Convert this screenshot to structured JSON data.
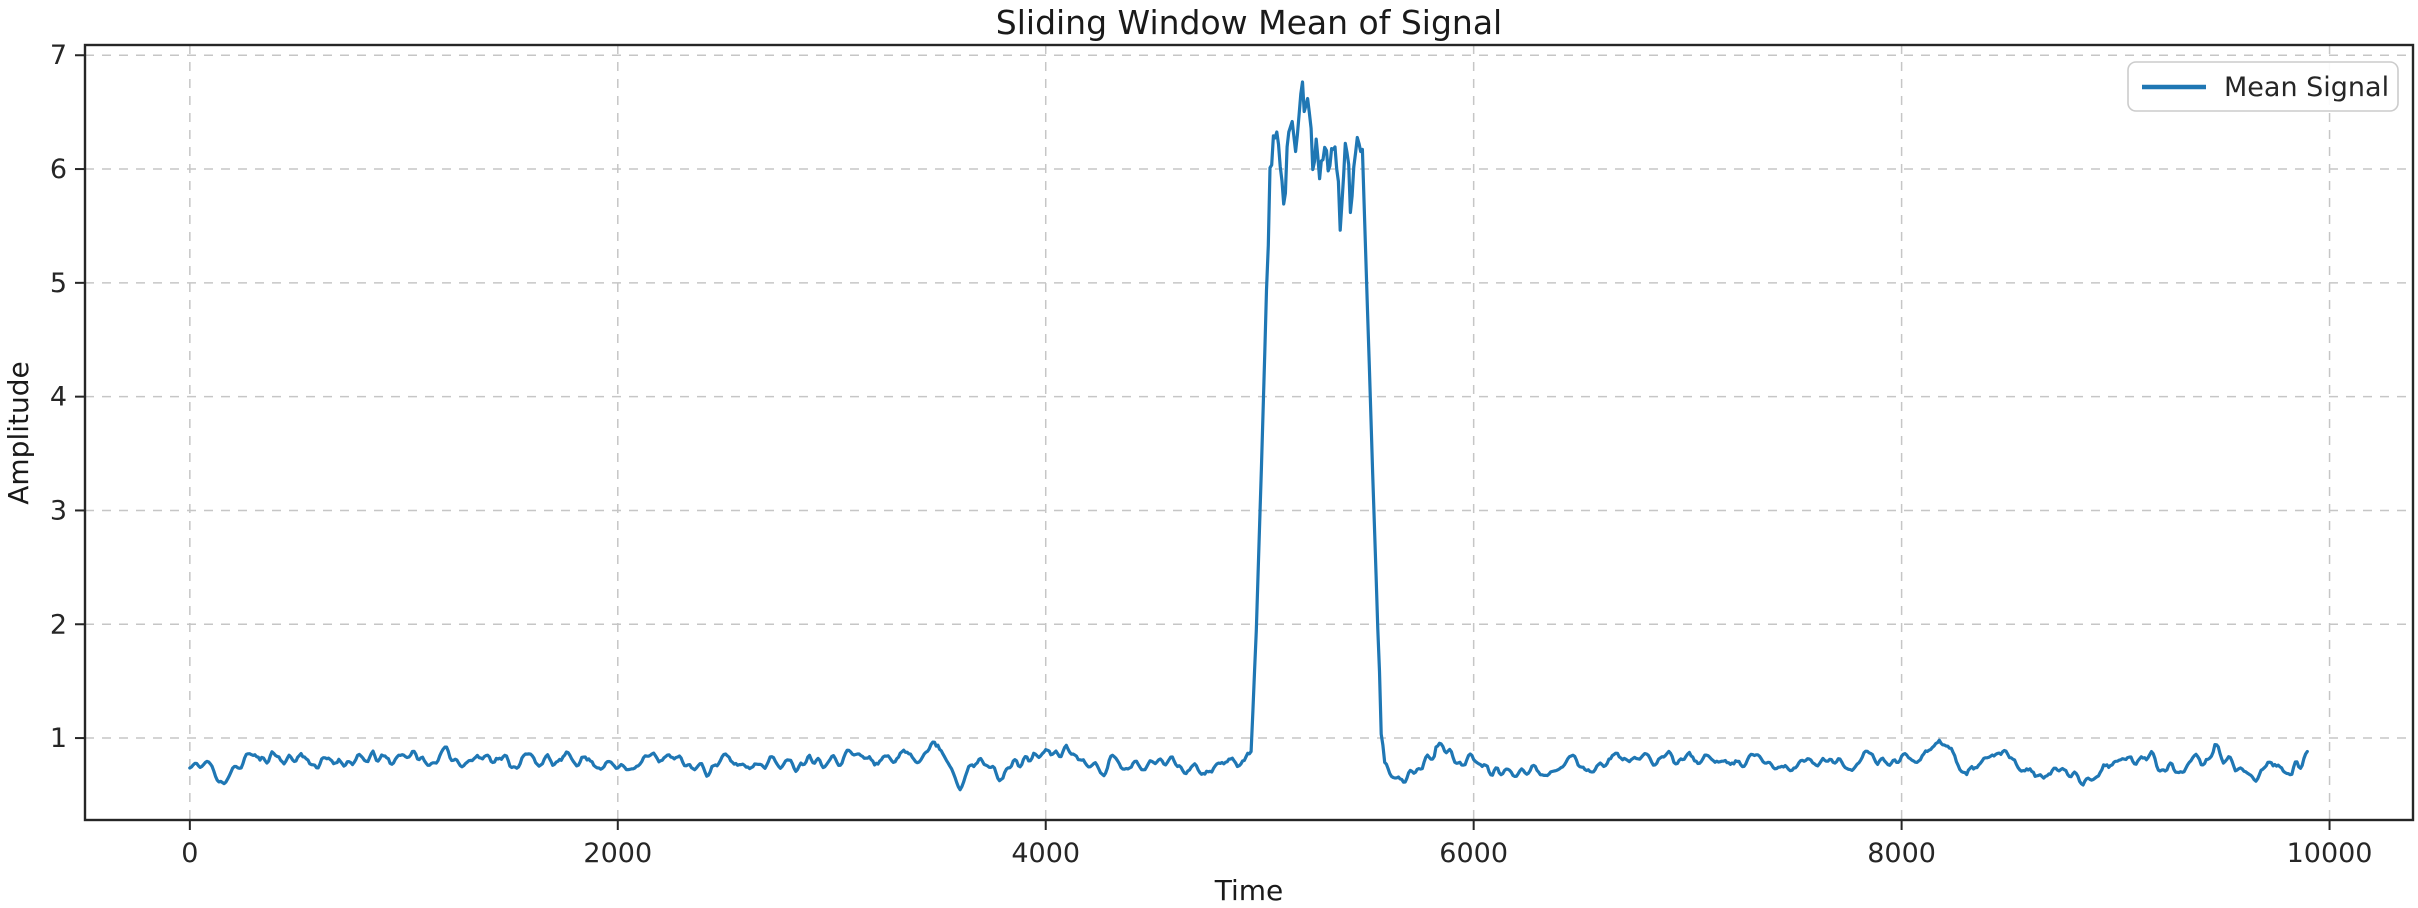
{
  "figure": {
    "title": "Sliding Window Mean of Signal",
    "x_axis_label": "Time",
    "y_axis_label": "Amplitude",
    "legend": {
      "position": "upper right",
      "entries": [
        {
          "label": "Mean Signal",
          "color": "#1f77b4"
        }
      ]
    }
  },
  "colors": {
    "line": "#1f77b4",
    "grid": "#c6c6c6",
    "spine": "#262626",
    "tick": "#262626",
    "text": "#1a1a1a",
    "legend_border": "#cccccc",
    "background": "#ffffff"
  },
  "chart_data": {
    "type": "line",
    "title": "Sliding Window Mean of Signal",
    "xlabel": "Time",
    "ylabel": "Amplitude",
    "legend": [
      "Mean Signal"
    ],
    "legend_position": "upper right",
    "grid": true,
    "grid_style": "dashed",
    "xlim": [
      -490,
      10390
    ],
    "ylim": [
      0.28,
      7.09
    ],
    "xticks": [
      0,
      2000,
      4000,
      6000,
      8000,
      10000
    ],
    "yticks": [
      1,
      2,
      3,
      4,
      5,
      6,
      7
    ],
    "description": "Sliding-window mean of a noisy signal: baseline near 0.78 with small fluctuations (0.62-0.97), a rectangular pulse between x=5000 and x=5550 where the mean oscillates around 6.1 (range 5.55-6.75, peak at x=5200), then baseline again until the series ends at x=9900.",
    "series": [
      {
        "name": "Mean Signal",
        "color": "#1f77b4",
        "keypoints": [
          [
            0,
            0.73
          ],
          [
            80,
            0.78
          ],
          [
            120,
            0.7
          ],
          [
            160,
            0.62
          ],
          [
            220,
            0.72
          ],
          [
            280,
            0.88
          ],
          [
            330,
            0.79
          ],
          [
            390,
            0.87
          ],
          [
            450,
            0.8
          ],
          [
            520,
            0.85
          ],
          [
            600,
            0.76
          ],
          [
            700,
            0.82
          ],
          [
            780,
            0.78
          ],
          [
            860,
            0.83
          ],
          [
            940,
            0.79
          ],
          [
            1000,
            0.88
          ],
          [
            1060,
            0.83
          ],
          [
            1100,
            0.78
          ],
          [
            1200,
            0.85
          ],
          [
            1300,
            0.8
          ],
          [
            1400,
            0.86
          ],
          [
            1500,
            0.78
          ],
          [
            1600,
            0.83
          ],
          [
            1700,
            0.77
          ],
          [
            1800,
            0.84
          ],
          [
            1900,
            0.79
          ],
          [
            2000,
            0.74
          ],
          [
            2100,
            0.8
          ],
          [
            2200,
            0.84
          ],
          [
            2300,
            0.78
          ],
          [
            2400,
            0.73
          ],
          [
            2500,
            0.8
          ],
          [
            2600,
            0.76
          ],
          [
            2700,
            0.82
          ],
          [
            2800,
            0.75
          ],
          [
            2900,
            0.85
          ],
          [
            3000,
            0.82
          ],
          [
            3080,
            0.86
          ],
          [
            3200,
            0.8
          ],
          [
            3300,
            0.84
          ],
          [
            3430,
            0.88
          ],
          [
            3500,
            0.95
          ],
          [
            3600,
            0.64
          ],
          [
            3700,
            0.8
          ],
          [
            3800,
            0.68
          ],
          [
            3870,
            0.78
          ],
          [
            3950,
            0.84
          ],
          [
            4100,
            0.9
          ],
          [
            4180,
            0.82
          ],
          [
            4250,
            0.76
          ],
          [
            4350,
            0.8
          ],
          [
            4450,
            0.74
          ],
          [
            4550,
            0.82
          ],
          [
            4650,
            0.76
          ],
          [
            4750,
            0.72
          ],
          [
            4850,
            0.78
          ],
          [
            4930,
            0.8
          ],
          [
            4960,
            0.88
          ],
          [
            4985,
            2.0
          ],
          [
            5010,
            3.5
          ],
          [
            5035,
            5.1
          ],
          [
            5055,
            6.15
          ],
          [
            5070,
            6.35
          ],
          [
            5085,
            6.2
          ],
          [
            5100,
            5.95
          ],
          [
            5115,
            5.78
          ],
          [
            5135,
            6.25
          ],
          [
            5155,
            6.42
          ],
          [
            5170,
            6.28
          ],
          [
            5185,
            6.5
          ],
          [
            5200,
            6.75
          ],
          [
            5212,
            6.55
          ],
          [
            5225,
            6.6
          ],
          [
            5240,
            6.3
          ],
          [
            5255,
            6.05
          ],
          [
            5268,
            6.18
          ],
          [
            5280,
            5.98
          ],
          [
            5295,
            6.15
          ],
          [
            5310,
            6.1
          ],
          [
            5325,
            5.95
          ],
          [
            5340,
            6.12
          ],
          [
            5355,
            6.05
          ],
          [
            5368,
            5.88
          ],
          [
            5380,
            5.58
          ],
          [
            5392,
            5.95
          ],
          [
            5405,
            6.18
          ],
          [
            5418,
            6.1
          ],
          [
            5430,
            5.88
          ],
          [
            5445,
            6.12
          ],
          [
            5460,
            6.22
          ],
          [
            5472,
            6.15
          ],
          [
            5482,
            6.05
          ],
          [
            5505,
            4.7
          ],
          [
            5530,
            3.2
          ],
          [
            5555,
            1.8
          ],
          [
            5572,
            0.95
          ],
          [
            5588,
            0.72
          ],
          [
            5620,
            0.68
          ],
          [
            5660,
            0.62
          ],
          [
            5700,
            0.67
          ],
          [
            5760,
            0.74
          ],
          [
            5830,
            0.95
          ],
          [
            5880,
            0.86
          ],
          [
            5950,
            0.8
          ],
          [
            6020,
            0.76
          ],
          [
            6100,
            0.71
          ],
          [
            6160,
            0.68
          ],
          [
            6250,
            0.76
          ],
          [
            6350,
            0.72
          ],
          [
            6450,
            0.78
          ],
          [
            6550,
            0.74
          ],
          [
            6650,
            0.84
          ],
          [
            6750,
            0.81
          ],
          [
            6850,
            0.79
          ],
          [
            6950,
            0.84
          ],
          [
            7050,
            0.8
          ],
          [
            7150,
            0.75
          ],
          [
            7250,
            0.8
          ],
          [
            7350,
            0.78
          ],
          [
            7450,
            0.73
          ],
          [
            7550,
            0.78
          ],
          [
            7650,
            0.8
          ],
          [
            7750,
            0.77
          ],
          [
            7850,
            0.82
          ],
          [
            7950,
            0.79
          ],
          [
            8050,
            0.85
          ],
          [
            8180,
            0.97
          ],
          [
            8310,
            0.68
          ],
          [
            8450,
            0.86
          ],
          [
            8550,
            0.76
          ],
          [
            8650,
            0.71
          ],
          [
            8750,
            0.7
          ],
          [
            8850,
            0.63
          ],
          [
            8950,
            0.74
          ],
          [
            9050,
            0.8
          ],
          [
            9160,
            0.85
          ],
          [
            9300,
            0.66
          ],
          [
            9400,
            0.8
          ],
          [
            9470,
            0.92
          ],
          [
            9560,
            0.73
          ],
          [
            9650,
            0.68
          ],
          [
            9750,
            0.74
          ],
          [
            9830,
            0.71
          ],
          [
            9900,
            0.82
          ]
        ]
      }
    ],
    "noise_texture": {
      "baseline_amplitude": 0.04,
      "spike_amplitude": 0.09,
      "spike_range": [
        5055,
        5482
      ],
      "sample_step": 8,
      "seed": 11
    }
  }
}
